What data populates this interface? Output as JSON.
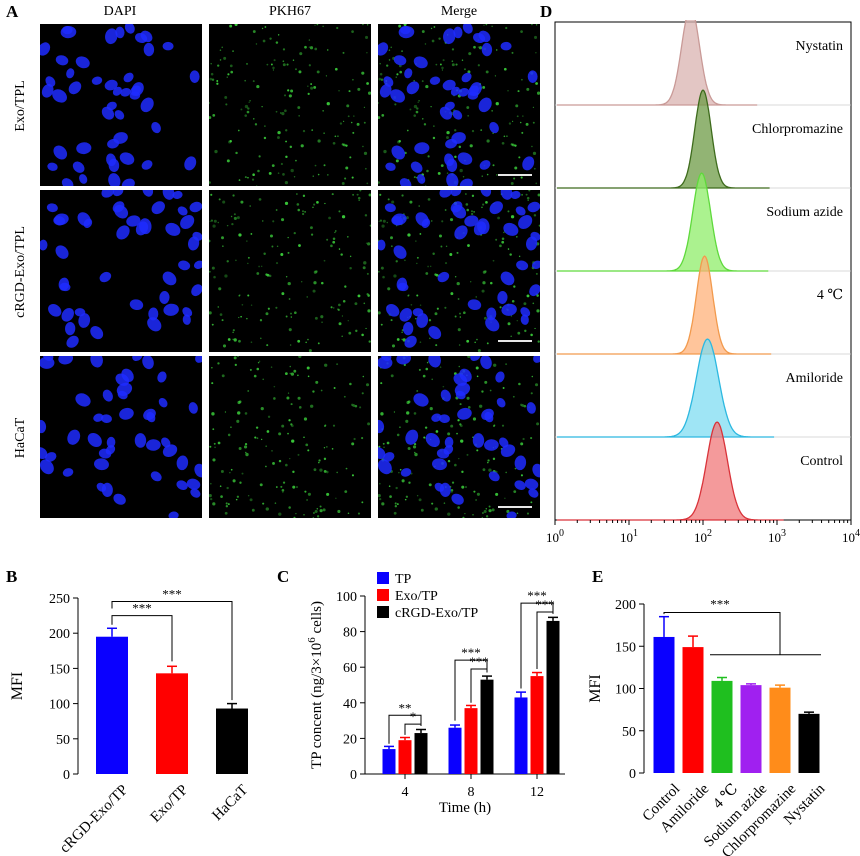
{
  "panel_a": {
    "letter": "A",
    "columns": [
      "DAPI",
      "PKH67",
      "Merge"
    ],
    "rows": [
      "Exo/TPL",
      "cRGD-Exo/TPL",
      "HaCaT"
    ]
  },
  "panel_d": {
    "letter": "D",
    "histograms": [
      "Nystatin",
      "Chlorpromazine",
      "Sodium azide",
      "4 ℃",
      "Amiloride",
      "Control"
    ],
    "colors": [
      "#d9b3b0",
      "#6d9b45",
      "#8fee6a",
      "#ffb27a",
      "#7fdcf2",
      "#f0787a"
    ],
    "line_colors": [
      "#c99a97",
      "#3e6b1c",
      "#5fd93c",
      "#f29a4d",
      "#2cb8e0",
      "#d9333a"
    ],
    "x_ticks": [
      "10",
      "10",
      "10",
      "10",
      "10"
    ],
    "x_exponents": [
      "0",
      "1",
      "2",
      "3",
      "4"
    ]
  },
  "chart_data": [
    {
      "panel": "B",
      "type": "bar",
      "categories": [
        "cRGD-Exo/TP",
        "Exo/TP",
        "HaCaT"
      ],
      "values": [
        195,
        143,
        93
      ],
      "errors": [
        12,
        10,
        7
      ],
      "colors": [
        "#0a00ff",
        "#ff0000",
        "#000000"
      ],
      "ylabel": "MFI",
      "ylim": [
        0,
        250
      ],
      "yticks": [
        "0",
        "50",
        "100",
        "150",
        "200",
        "250"
      ],
      "significance": [
        "***",
        "***"
      ]
    },
    {
      "panel": "C",
      "type": "bar",
      "categories": [
        "4",
        "8",
        "12"
      ],
      "series": [
        {
          "name": "TP",
          "values": [
            14,
            26,
            43
          ],
          "errors": [
            1.5,
            1.5,
            3
          ],
          "color": "#0a00ff"
        },
        {
          "name": "Exo/TP",
          "values": [
            19,
            37,
            55
          ],
          "errors": [
            1.5,
            1.5,
            2
          ],
          "color": "#ff0000"
        },
        {
          "name": "cRGD-Exo/TP",
          "values": [
            23,
            53,
            86
          ],
          "errors": [
            2,
            2,
            2
          ],
          "color": "#000000"
        }
      ],
      "xlabel": "Time (h)",
      "ylabel": "TP concent (ng/3×10",
      "ylabel_exp": "6",
      "ylabel_tail": " cells)",
      "ylim": [
        0,
        100
      ],
      "yticks": [
        "0",
        "20",
        "40",
        "60",
        "80",
        "100"
      ],
      "significance": [
        "**",
        "*",
        "***",
        "***",
        "***",
        "***"
      ]
    },
    {
      "panel": "E",
      "type": "bar",
      "categories": [
        "Control",
        "Amiloride",
        "4 ℃",
        "Sodium azide",
        "Chlorpromazine",
        "Nystatin"
      ],
      "values": [
        161,
        149,
        109,
        104,
        101,
        70
      ],
      "errors": [
        24,
        13,
        4,
        1.5,
        3,
        2
      ],
      "colors": [
        "#0a00ff",
        "#ff0000",
        "#1fbf1f",
        "#a020f0",
        "#ff8c1a",
        "#000000"
      ],
      "ylabel": "MFI",
      "ylim": [
        0,
        200
      ],
      "yticks": [
        "0",
        "50",
        "100",
        "150",
        "200"
      ],
      "significance": [
        "***"
      ]
    }
  ]
}
